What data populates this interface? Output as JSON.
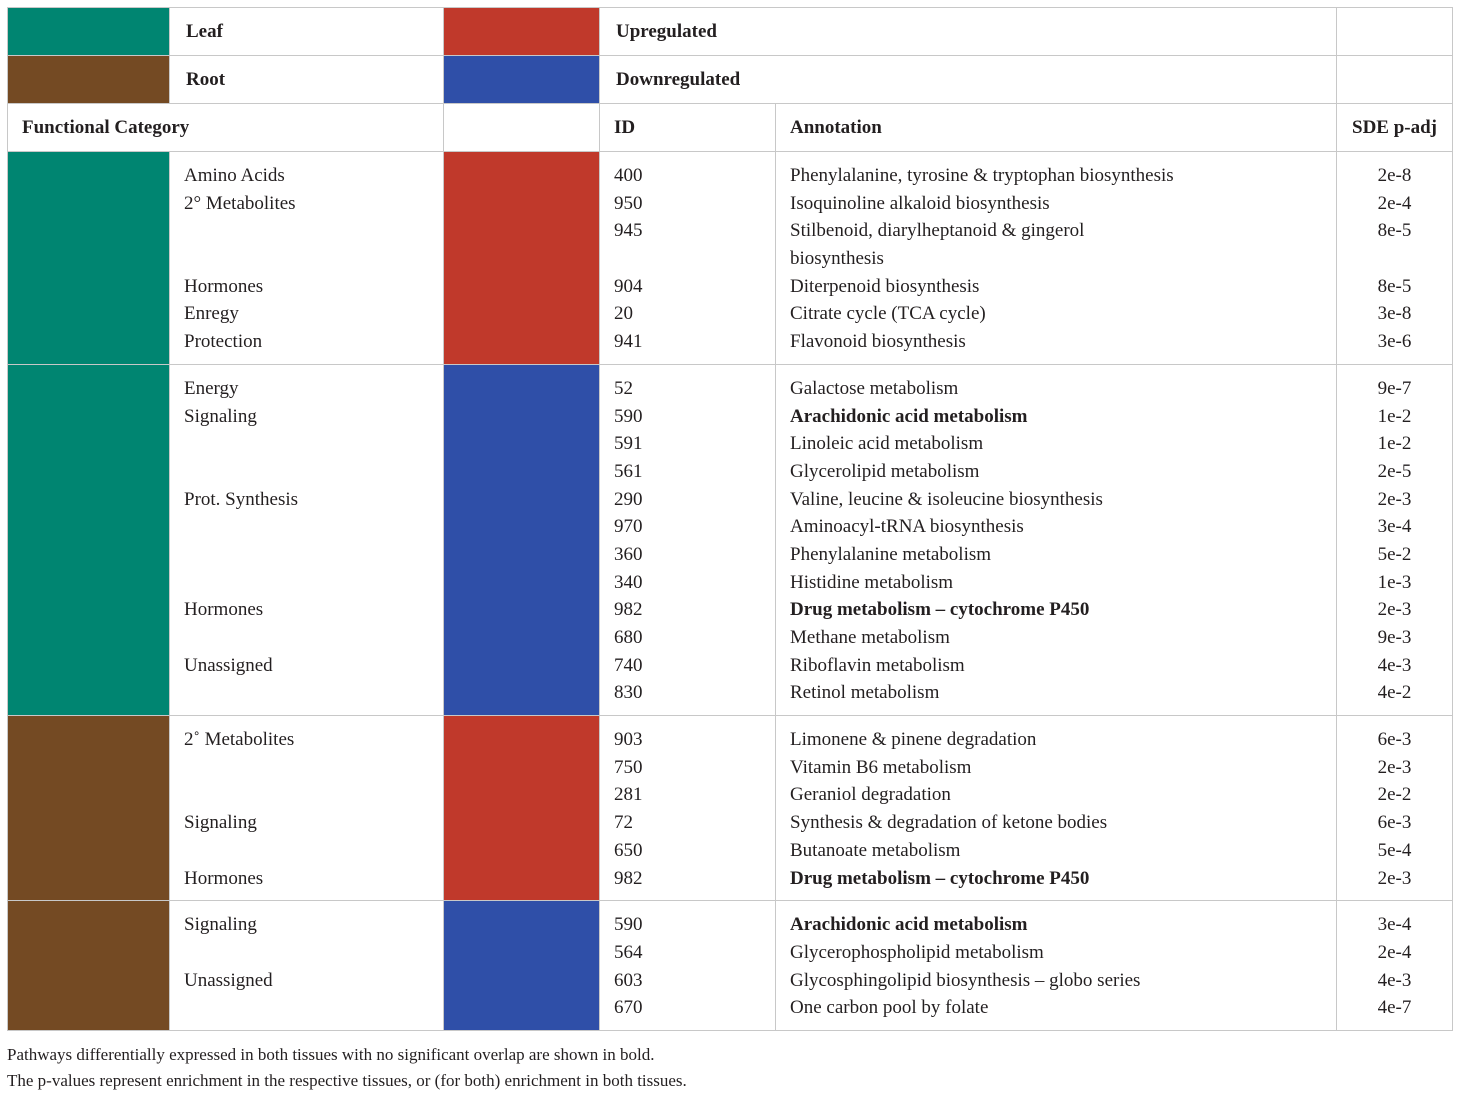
{
  "legend": {
    "tissues": [
      {
        "label": "Leaf",
        "color": "#008571"
      },
      {
        "label": "Root",
        "color": "#744a23"
      }
    ],
    "directions": [
      {
        "label": "Upregulated",
        "color": "#c0392b"
      },
      {
        "label": "Downregulated",
        "color": "#2f4fa8"
      }
    ]
  },
  "header": {
    "functional_category": "Functional Category",
    "id": "ID",
    "annotation": "Annotation",
    "p_adj": "SDE p-adj"
  },
  "blocks": [
    {
      "tissue_color": "#008571",
      "direction_color": "#c0392b",
      "rows": [
        {
          "category": "Amino Acids",
          "id": "400",
          "annotation": "Phenylalanine, tyrosine & tryptophan biosynthesis",
          "p": "2e-8",
          "bold": false
        },
        {
          "category": "2° Metabolites",
          "id": "950",
          "annotation": "Isoquinoline alkaloid biosynthesis",
          "p": "2e-4",
          "bold": false
        },
        {
          "category": "",
          "id": "945",
          "annotation": "Stilbenoid, diarylheptanoid & gingerol",
          "annotation2": "biosynthesis",
          "p": "8e-5",
          "bold": false
        },
        {
          "category": "Hormones",
          "id": "904",
          "annotation": "Diterpenoid biosynthesis",
          "p": "8e-5",
          "bold": false
        },
        {
          "category": "Enregy",
          "id": "20",
          "annotation": "Citrate cycle (TCA cycle)",
          "p": "3e-8",
          "bold": false
        },
        {
          "category": "Protection",
          "id": "941",
          "annotation": "Flavonoid biosynthesis",
          "p": "3e-6",
          "bold": false
        }
      ]
    },
    {
      "tissue_color": "#008571",
      "direction_color": "#2f4fa8",
      "rows": [
        {
          "category": "Energy",
          "id": "52",
          "annotation": "Galactose metabolism",
          "p": "9e-7",
          "bold": false
        },
        {
          "category": "Signaling",
          "id": "590",
          "annotation": "Arachidonic acid metabolism",
          "p": "1e-2",
          "bold": true
        },
        {
          "category": "",
          "id": "591",
          "annotation": "Linoleic acid metabolism",
          "p": "1e-2",
          "bold": false
        },
        {
          "category": "",
          "id": "561",
          "annotation": "Glycerolipid metabolism",
          "p": "2e-5",
          "bold": false
        },
        {
          "category": "Prot. Synthesis",
          "id": "290",
          "annotation": "Valine, leucine & isoleucine biosynthesis",
          "p": "2e-3",
          "bold": false
        },
        {
          "category": "",
          "id": "970",
          "annotation": "Aminoacyl-tRNA biosynthesis",
          "p": "3e-4",
          "bold": false
        },
        {
          "category": "",
          "id": "360",
          "annotation": "Phenylalanine metabolism",
          "p": "5e-2",
          "bold": false
        },
        {
          "category": "",
          "id": "340",
          "annotation": "Histidine metabolism",
          "p": "1e-3",
          "bold": false
        },
        {
          "category": "Hormones",
          "id": "982",
          "annotation": "Drug metabolism – cytochrome P450",
          "p": "2e-3",
          "bold": true
        },
        {
          "category": "",
          "id": "680",
          "annotation": "Methane metabolism",
          "p": "9e-3",
          "bold": false
        },
        {
          "category": "Unassigned",
          "id": "740",
          "annotation": "Riboflavin metabolism",
          "p": "4e-3",
          "bold": false
        },
        {
          "category": "",
          "id": "830",
          "annotation": "Retinol metabolism",
          "p": "4e-2",
          "bold": false
        }
      ]
    },
    {
      "tissue_color": "#744a23",
      "direction_color": "#c0392b",
      "rows": [
        {
          "category": "2˚ Metabolites",
          "id": "903",
          "annotation": "Limonene & pinene degradation",
          "p": "6e-3",
          "bold": false
        },
        {
          "category": "",
          "id": "750",
          "annotation": "Vitamin B6 metabolism",
          "p": "2e-3",
          "bold": false
        },
        {
          "category": "",
          "id": "281",
          "annotation": "Geraniol degradation",
          "p": "2e-2",
          "bold": false
        },
        {
          "category": "Signaling",
          "id": "72",
          "annotation": "Synthesis & degradation of ketone bodies",
          "p": "6e-3",
          "bold": false
        },
        {
          "category": "",
          "id": "650",
          "annotation": "Butanoate metabolism",
          "p": "5e-4",
          "bold": false
        },
        {
          "category": "Hormones",
          "id": "982",
          "annotation": "Drug metabolism – cytochrome P450",
          "p": "2e-3",
          "bold": true
        }
      ]
    },
    {
      "tissue_color": "#744a23",
      "direction_color": "#2f4fa8",
      "rows": [
        {
          "category": "Signaling",
          "id": "590",
          "annotation": "Arachidonic acid metabolism",
          "p": "3e-4",
          "bold": true
        },
        {
          "category": "",
          "id": "564",
          "annotation": "Glycerophospholipid metabolism",
          "p": "2e-4",
          "bold": false
        },
        {
          "category": "Unassigned",
          "id": "603",
          "annotation": "Glycosphingolipid biosynthesis – globo series",
          "p": "4e-3",
          "bold": false
        },
        {
          "category": "",
          "id": "670",
          "annotation": "One carbon pool by folate",
          "p": "4e-7",
          "bold": false
        }
      ]
    }
  ],
  "footnotes": [
    "Pathways differentially expressed in both tissues with no significant overlap are shown in bold.",
    "The p-values represent enrichment in the respective tissues, or (for both) enrichment in both tissues."
  ]
}
